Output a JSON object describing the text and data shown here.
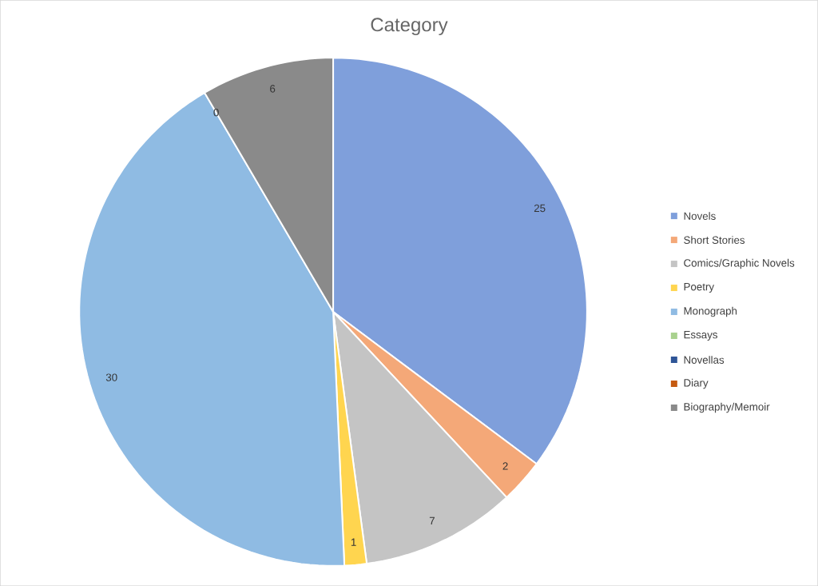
{
  "chart_data": {
    "type": "pie",
    "title": "Category",
    "categories": [
      "Novels",
      "Short Stories",
      "Comics/Graphic Novels",
      "Poetry",
      "Monograph",
      "Essays",
      "Novellas",
      "Diary",
      "Biography/Memoir"
    ],
    "values": [
      25,
      2,
      7,
      1,
      30,
      0,
      0,
      0,
      6
    ],
    "colors": [
      "#7f9fdb",
      "#f4a878",
      "#c4c4c4",
      "#ffd54f",
      "#8fbbe3",
      "#a9d18e",
      "#2f5597",
      "#c55a11",
      "#8a8a8a"
    ],
    "value_labels": [
      "25",
      "2",
      "7",
      "1",
      "30",
      "0",
      null,
      null,
      "6"
    ],
    "legend": "right"
  }
}
